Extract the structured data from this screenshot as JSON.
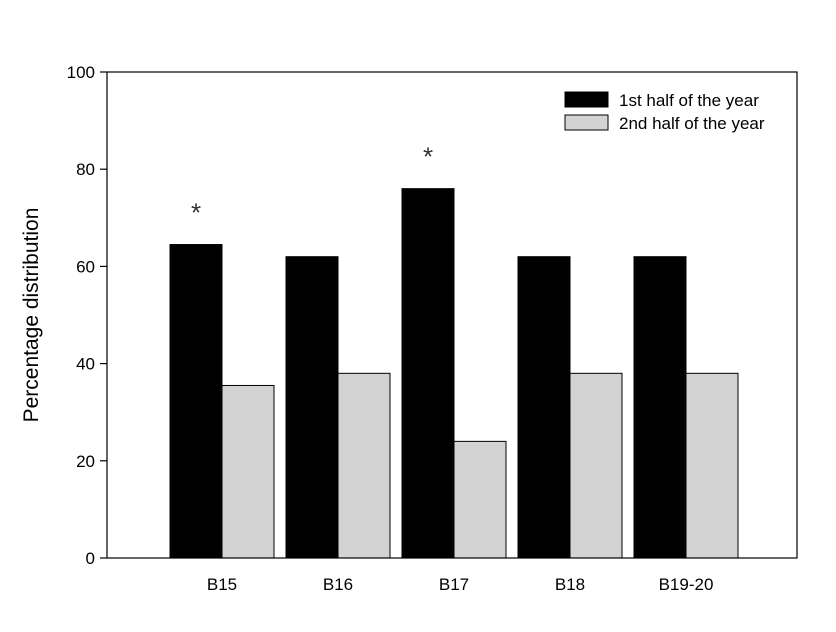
{
  "chart_data": {
    "type": "bar",
    "title": "",
    "xlabel": "",
    "ylabel": "Percentage distribution",
    "ylim": [
      0,
      100
    ],
    "yticks": [
      0,
      20,
      40,
      60,
      80,
      100
    ],
    "categories": [
      "B15",
      "B16",
      "B17",
      "B18",
      "B19-20"
    ],
    "series": [
      {
        "name": "1st half of the year",
        "values": [
          64.5,
          62,
          76,
          62,
          62
        ],
        "color": "#000000"
      },
      {
        "name": "2nd half of the year",
        "values": [
          35.5,
          38,
          24,
          38,
          38
        ],
        "color": "#d3d3d3"
      }
    ],
    "annotations": [
      {
        "category": "B15",
        "text": "*"
      },
      {
        "category": "B17",
        "text": "*"
      }
    ],
    "legend": "top-right",
    "grid": false
  }
}
